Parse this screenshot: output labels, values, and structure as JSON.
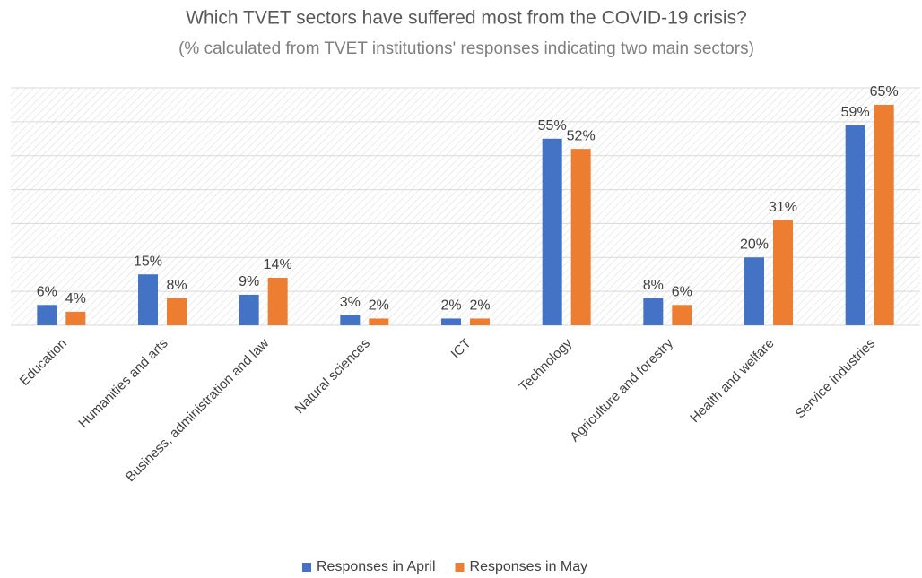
{
  "chart_data": {
    "type": "bar",
    "title": "Which TVET sectors have suffered most from the COVID-19 crisis?",
    "subtitle": "(% calculated from TVET institutions' responses indicating two main sectors)",
    "categories": [
      "Education",
      "Humanities and arts",
      "Business, administration and law",
      "Natural sciences",
      "ICT",
      "Technology",
      "Agriculture and forestry",
      "Health and welfare",
      "Service industries"
    ],
    "series": [
      {
        "name": "Responses in April",
        "color": "#4472c4",
        "values": [
          6,
          15,
          9,
          3,
          2,
          55,
          8,
          20,
          59
        ],
        "value_labels": [
          "6%",
          "15%",
          "9%",
          "3%",
          "2%",
          "55%",
          "8%",
          "20%",
          "59%"
        ]
      },
      {
        "name": "Responses in May",
        "color": "#ed7d31",
        "values": [
          4,
          8,
          14,
          2,
          2,
          52,
          6,
          31,
          65
        ],
        "value_labels": [
          "4%",
          "8%",
          "14%",
          "2%",
          "2%",
          "52%",
          "6%",
          "31%",
          "65%"
        ]
      }
    ],
    "ylim": [
      0,
      70
    ],
    "yticks": [
      0,
      10,
      20,
      30,
      40,
      50,
      60,
      70
    ],
    "grid": true,
    "legend": "bottom"
  }
}
